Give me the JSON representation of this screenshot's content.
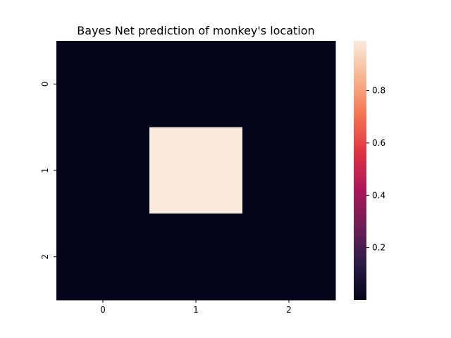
{
  "chart_data": {
    "type": "heatmap",
    "title": "Bayes Net prediction of monkey's location",
    "xlabel": "",
    "ylabel": "",
    "x_categories": [
      "0",
      "1",
      "2"
    ],
    "y_categories": [
      "0",
      "1",
      "2"
    ],
    "values": [
      [
        0.0,
        0.0,
        0.0
      ],
      [
        0.0,
        0.99,
        0.0
      ],
      [
        0.0,
        0.0,
        0.0
      ]
    ],
    "colorbar": {
      "min": 0.0,
      "max": 0.99,
      "ticks": [
        0.2,
        0.4,
        0.6,
        0.8
      ],
      "tick_labels": [
        "0.2",
        "0.4",
        "0.6",
        "0.8"
      ]
    },
    "colormap": "rocket",
    "colormap_stops": [
      "#03051a",
      "#2b1c47",
      "#701f57",
      "#ad1759",
      "#e13342",
      "#f37651",
      "#f6b48f",
      "#faebdd"
    ]
  }
}
